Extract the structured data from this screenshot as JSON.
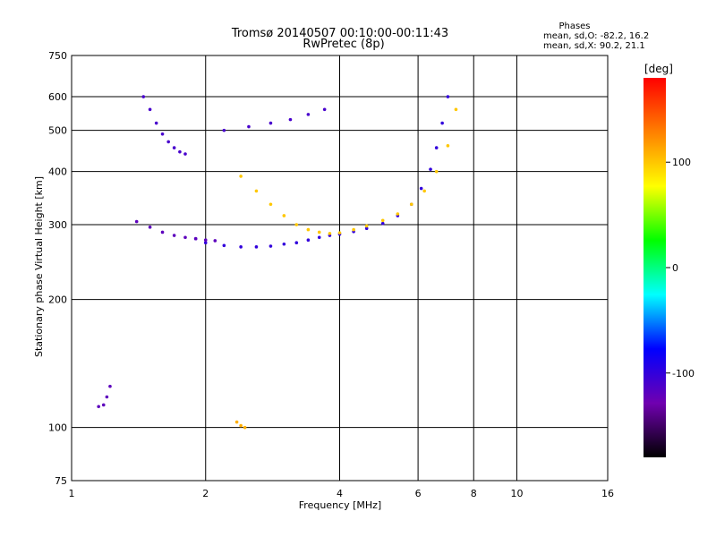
{
  "chart_data": {
    "type": "scatter",
    "title": "Tromsø 20140507 00:10:00-00:11:43",
    "subtitle": "RwPretec (8p)",
    "xlabel": "Frequency [MHz]",
    "ylabel": "Stationary phase Virtual Height [km]",
    "x_scale": "log",
    "y_scale": "log",
    "xlim": [
      1,
      16
    ],
    "ylim": [
      75,
      750
    ],
    "x_ticks": [
      1,
      2,
      4,
      6,
      8,
      10,
      16
    ],
    "y_ticks": [
      75,
      100,
      200,
      300,
      400,
      500,
      600,
      750
    ],
    "grid": true,
    "phase_info": {
      "title": "Phases",
      "line1": "mean, sd,O: -82.2, 16.2",
      "line2": "mean, sd,X:  90.2, 21.1"
    },
    "colorbar": {
      "label": "[deg]",
      "range": [
        -180,
        180
      ],
      "ticks": [
        100,
        0,
        -100
      ],
      "colors": [
        "#ff0000",
        "#ff8000",
        "#ffff00",
        "#00ff00",
        "#00ffff",
        "#0000ff",
        "#7000b0",
        "#000000"
      ]
    },
    "series": [
      {
        "name": "",
        "phase": -100,
        "x": [
          1.9,
          2.0,
          2.2,
          2.4,
          2.6,
          2.8,
          3.0,
          3.2,
          3.4,
          3.6,
          3.8,
          4.0,
          4.3,
          4.6,
          5.0,
          5.4,
          5.8,
          6.1,
          6.4,
          6.6,
          6.8,
          7.0
        ],
        "y": [
          278,
          272,
          268,
          266,
          266,
          267,
          270,
          272,
          276,
          280,
          283,
          285,
          289,
          294,
          302,
          315,
          335,
          365,
          405,
          455,
          520,
          600
        ]
      },
      {
        "name": "",
        "phase": -120,
        "x": [
          1.4,
          1.5,
          1.6,
          1.7,
          1.8,
          1.9,
          2.0,
          2.1
        ],
        "y": [
          305,
          296,
          288,
          283,
          280,
          278,
          276,
          275
        ]
      },
      {
        "name": "",
        "phase": -110,
        "x": [
          1.45,
          1.5,
          1.55,
          1.6,
          1.65,
          1.7,
          1.75,
          1.8
        ],
        "y": [
          600,
          560,
          520,
          490,
          470,
          455,
          445,
          440
        ]
      },
      {
        "name": "",
        "phase": 100,
        "x": [
          2.4,
          2.6,
          2.8,
          3.0,
          3.2,
          3.4,
          3.6,
          3.8,
          4.0,
          4.3,
          4.6,
          5.0,
          5.4,
          5.8,
          6.2,
          6.6,
          7.0,
          7.3
        ],
        "y": [
          390,
          360,
          335,
          315,
          300,
          292,
          288,
          286,
          287,
          292,
          298,
          307,
          318,
          335,
          360,
          400,
          460,
          560
        ]
      },
      {
        "name": "",
        "phase": -110,
        "x": [
          2.2,
          2.5,
          2.8,
          3.1,
          3.4,
          3.7
        ],
        "y": [
          500,
          510,
          520,
          530,
          545,
          560
        ]
      },
      {
        "name": "",
        "phase": -120,
        "x": [
          1.15,
          1.18,
          1.2,
          1.22
        ],
        "y": [
          112,
          113,
          118,
          125
        ]
      },
      {
        "name": "",
        "phase": 110,
        "x": [
          2.35,
          2.4,
          2.45
        ],
        "y": [
          103,
          101,
          100
        ]
      }
    ]
  }
}
